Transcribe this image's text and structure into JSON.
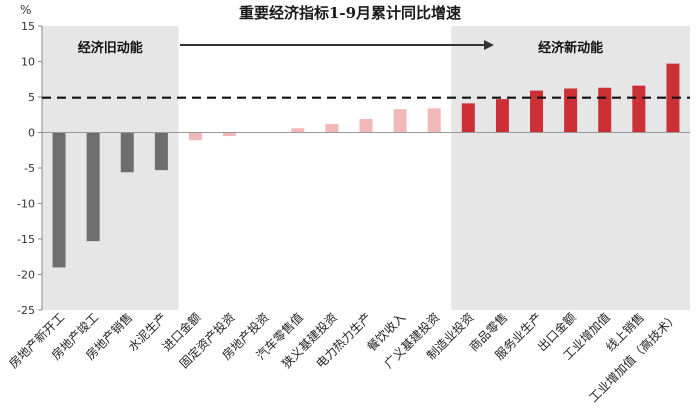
{
  "chart_data": {
    "type": "bar",
    "title": "重要经济指标1-9月累计同比增速",
    "unit_label": "%",
    "categories": [
      "房地产新开工",
      "房地产竣工",
      "房地产销售",
      "水泥生产",
      "进口金额",
      "固定资产投资",
      "房地产投资",
      "汽车零售值",
      "狭义基建投资",
      "电力热力生产",
      "餐饮收入",
      "广义基建投资",
      "制造业投资",
      "商品零售",
      "服务业生产",
      "出口金额",
      "工业增加值",
      "线上销售",
      "工业增加值（高技术）"
    ],
    "values": [
      -19.0,
      -15.3,
      -5.6,
      -5.3,
      -1.1,
      -0.5,
      0.0,
      0.6,
      1.2,
      1.9,
      3.3,
      3.4,
      4.1,
      4.7,
      5.9,
      6.2,
      6.3,
      6.6,
      9.7
    ],
    "ylim": [
      -25,
      15
    ],
    "yticks": [
      -25,
      -20,
      -15,
      -10,
      -5,
      0,
      5,
      10,
      15
    ],
    "reference_line": 4.9,
    "grid": false,
    "annotations": {
      "old_zone_label": "经济旧动能",
      "new_zone_label": "经济新动能",
      "old_zone_range": [
        0,
        3
      ],
      "new_zone_range": [
        12,
        18
      ]
    },
    "colors": {
      "old": "#6e6e6e",
      "mid": "#f2b8b8",
      "new": "#cc2f36",
      "zone_bg": "#e6e6e6",
      "ref_line": "#111111"
    }
  }
}
